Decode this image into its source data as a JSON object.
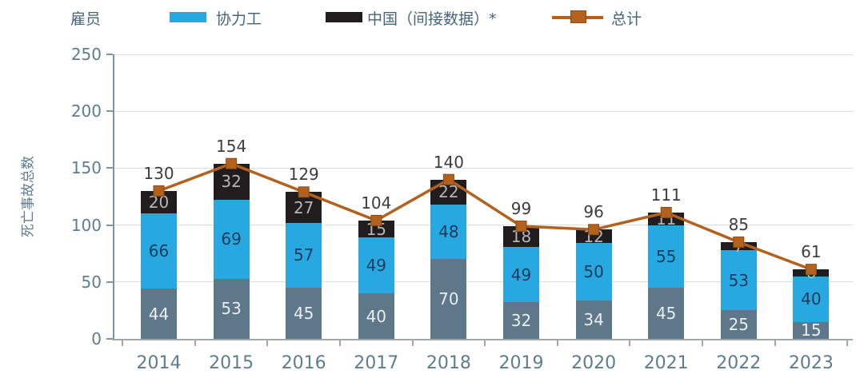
{
  "legend": {
    "employee_label": "雇员",
    "contractor_label": "协力工",
    "china_label": "中国（间接数据）*",
    "total_label": "总计"
  },
  "colors": {
    "employee_bar": "#5e7889",
    "contractor_bar": "#28a8e0",
    "china_bar": "#211d1e",
    "total_line": "#b2611e",
    "total_marker_edge": "#8d4c15",
    "axis": "#7e95a6",
    "baseline": "#9fa8ae",
    "grid": "#dcdee0",
    "tick_text": "#5e7d8f",
    "legend_text": "#45657c",
    "total_label_text": "#3d3d3d",
    "label_on_employee": "#e9eef1",
    "label_on_contractor": "#1b3a5c",
    "label_on_china": "#b6b5b5"
  },
  "chart_data": {
    "type": "bar",
    "subtype": "stacked-bars-with-total-line",
    "title": "",
    "ylabel": "死亡事故总数",
    "xlabel": "",
    "categories": [
      "2014",
      "2015",
      "2016",
      "2017",
      "2018",
      "2019",
      "2020",
      "2021",
      "2022",
      "2023"
    ],
    "series": [
      {
        "key": "employee",
        "name": "雇员",
        "color": "#5e7889",
        "label_color": "#e9eef1",
        "values": [
          44,
          53,
          45,
          40,
          70,
          32,
          34,
          45,
          25,
          15
        ]
      },
      {
        "key": "contractor",
        "name": "协力工",
        "color": "#28a8e0",
        "label_color": "#1b3a5c",
        "values": [
          66,
          69,
          57,
          49,
          48,
          49,
          50,
          55,
          53,
          40
        ]
      },
      {
        "key": "china",
        "name": "中国（间接数据）*",
        "color": "#211d1e",
        "label_color": "#b6b5b5",
        "values": [
          20,
          32,
          27,
          15,
          22,
          18,
          12,
          11,
          7,
          6
        ]
      }
    ],
    "line_series": {
      "key": "total",
      "name": "总计",
      "color": "#b2611e",
      "values": [
        130,
        154,
        129,
        104,
        140,
        99,
        96,
        111,
        85,
        61
      ]
    },
    "y_ticks": [
      0,
      50,
      100,
      150,
      200,
      250
    ],
    "ylim": [
      0,
      250
    ],
    "grid": true,
    "legend_position": "top"
  }
}
